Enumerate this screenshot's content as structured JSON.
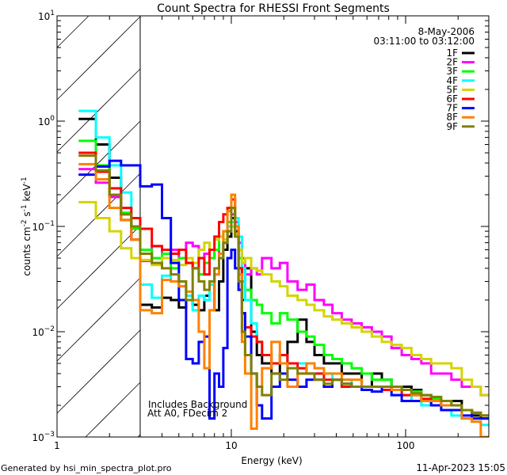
{
  "chart_data": {
    "type": "line",
    "title": "Count Spectra for RHESSI Front Segments",
    "xlabel": "Energy (keV)",
    "ylabel": {
      "base": "counts cm",
      "exp1": "-2",
      "mid": " s",
      "exp2": "-1",
      "tail": " keV",
      "exp3": "-1"
    },
    "xscale": "log",
    "yscale": "log",
    "xlim": [
      1,
      300
    ],
    "ylim": [
      0.001,
      10
    ],
    "x_tick_labels": [
      {
        "value": 1,
        "label": "1"
      },
      {
        "value": 10,
        "label": "10"
      },
      {
        "value": 100,
        "label": "100"
      }
    ],
    "y_tick_labels": [
      {
        "value": 10,
        "base": "10",
        "exp": "1"
      },
      {
        "value": 1,
        "base": "10",
        "exp": "0"
      },
      {
        "value": 0.1,
        "base": "10",
        "exp": "−1"
      },
      {
        "value": 0.01,
        "base": "10",
        "exp": "−2"
      },
      {
        "value": 0.001,
        "base": "10",
        "exp": "−3"
      }
    ],
    "excluded_region_keV": [
      1,
      3
    ],
    "date": "8-May-2006",
    "time_range": "03:11:00 to 03:12:00",
    "annotations": [
      "Includes Background",
      "Att A0, FDecim 2"
    ],
    "legend_position": "top-right",
    "bin_edges_keV": [
      1.33,
      1.67,
      2,
      2.33,
      2.67,
      3,
      3.5,
      4,
      4.5,
      5,
      5.5,
      6,
      6.5,
      7,
      7.5,
      8,
      8.5,
      9,
      9.5,
      10,
      10.5,
      11,
      11.5,
      12,
      13,
      14,
      15,
      17,
      19,
      21,
      24,
      27,
      30,
      34,
      38,
      43,
      49,
      56,
      64,
      73,
      83,
      95,
      108,
      123,
      140,
      160,
      183,
      210,
      240,
      270,
      300
    ],
    "series": [
      {
        "name": "1F",
        "color": "#000000",
        "values": [
          1.05,
          0.6,
          0.29,
          0.115,
          0.075,
          0.018,
          0.017,
          0.021,
          0.02,
          0.017,
          0.02,
          0.018,
          0.016,
          0.022,
          0.03,
          0.016,
          0.03,
          0.06,
          0.08,
          0.12,
          0.09,
          0.04,
          0.02,
          0.04,
          0.01,
          0.006,
          0.005,
          0.004,
          0.005,
          0.008,
          0.013,
          0.008,
          0.006,
          0.005,
          0.005,
          0.004,
          0.004,
          0.003,
          0.004,
          0.0035,
          0.003,
          0.003,
          0.0028,
          0.0025,
          0.002,
          0.0022,
          0.0022,
          0.0018,
          0.0016,
          0.0015
        ]
      },
      {
        "name": "2F",
        "color": "#ff00ff",
        "values": [
          0.35,
          0.26,
          0.19,
          0.13,
          0.075,
          0.047,
          0.065,
          0.05,
          0.06,
          0.05,
          0.07,
          0.065,
          0.05,
          0.055,
          0.05,
          0.06,
          0.055,
          0.07,
          0.09,
          0.13,
          0.11,
          0.07,
          0.05,
          0.035,
          0.04,
          0.035,
          0.05,
          0.04,
          0.045,
          0.03,
          0.025,
          0.028,
          0.02,
          0.018,
          0.015,
          0.013,
          0.012,
          0.011,
          0.01,
          0.009,
          0.007,
          0.006,
          0.0055,
          0.005,
          0.004,
          0.004,
          0.0035,
          0.003,
          0.003,
          0.0025
        ]
      },
      {
        "name": "3F",
        "color": "#00ff00",
        "values": [
          0.65,
          0.38,
          0.2,
          0.135,
          0.095,
          0.06,
          0.05,
          0.055,
          0.04,
          0.05,
          0.045,
          0.04,
          0.035,
          0.045,
          0.05,
          0.06,
          0.08,
          0.09,
          0.11,
          0.15,
          0.1,
          0.05,
          0.03,
          0.025,
          0.02,
          0.018,
          0.015,
          0.012,
          0.015,
          0.013,
          0.01,
          0.009,
          0.0075,
          0.006,
          0.0055,
          0.005,
          0.0045,
          0.004,
          0.0035,
          0.0035,
          0.003,
          0.0028,
          0.0027,
          0.0025,
          0.0023,
          0.0022,
          0.002,
          0.0018,
          0.0017,
          0.0016
        ]
      },
      {
        "name": "4F",
        "color": "#00ffff",
        "values": [
          1.25,
          0.7,
          0.38,
          0.21,
          0.1,
          0.028,
          0.021,
          0.034,
          0.03,
          0.03,
          0.022,
          0.016,
          0.022,
          0.02,
          0.028,
          0.035,
          0.05,
          0.07,
          0.1,
          0.11,
          0.12,
          0.08,
          0.04,
          0.02,
          0.012,
          0.008,
          0.006,
          0.005,
          0.006,
          0.005,
          0.005,
          0.004,
          0.004,
          0.004,
          0.0035,
          0.0035,
          0.003,
          0.003,
          0.003,
          0.0028,
          0.0025,
          0.0025,
          0.0022,
          0.002,
          0.002,
          0.0018,
          0.0016,
          0.0015,
          0.0014,
          0.0013
        ]
      },
      {
        "name": "5F",
        "color": "#d4d400",
        "values": [
          0.17,
          0.12,
          0.09,
          0.062,
          0.05,
          0.048,
          0.043,
          0.05,
          0.048,
          0.043,
          0.05,
          0.045,
          0.06,
          0.07,
          0.06,
          0.075,
          0.08,
          0.075,
          0.09,
          0.1,
          0.085,
          0.06,
          0.045,
          0.05,
          0.04,
          0.038,
          0.035,
          0.03,
          0.027,
          0.022,
          0.02,
          0.018,
          0.016,
          0.014,
          0.013,
          0.012,
          0.011,
          0.01,
          0.009,
          0.008,
          0.0075,
          0.007,
          0.006,
          0.0055,
          0.005,
          0.005,
          0.0045,
          0.0035,
          0.003,
          0.0025
        ]
      },
      {
        "name": "6F",
        "color": "#ff0000",
        "values": [
          0.5,
          0.33,
          0.23,
          0.15,
          0.12,
          0.095,
          0.065,
          0.06,
          0.055,
          0.06,
          0.045,
          0.04,
          0.05,
          0.035,
          0.06,
          0.08,
          0.11,
          0.13,
          0.15,
          0.18,
          0.1,
          0.04,
          0.015,
          0.011,
          0.009,
          0.008,
          0.006,
          0.005,
          0.006,
          0.005,
          0.0045,
          0.004,
          0.004,
          0.0035,
          0.0035,
          0.003,
          0.003,
          0.003,
          0.003,
          0.0028,
          0.0028,
          0.0025,
          0.0025,
          0.0023,
          0.0022,
          0.002,
          0.002,
          0.0018,
          0.0017,
          0.0016
        ]
      },
      {
        "name": "7F",
        "color": "#0000ff",
        "values": [
          0.31,
          0.37,
          0.42,
          0.38,
          0.38,
          0.24,
          0.25,
          0.12,
          0.045,
          0.02,
          0.0055,
          0.005,
          0.008,
          0.009,
          0.0015,
          0.004,
          0.003,
          0.007,
          0.05,
          0.06,
          0.04,
          0.025,
          0.015,
          0.009,
          0.004,
          0.002,
          0.0015,
          0.003,
          0.004,
          0.0035,
          0.003,
          0.0035,
          0.0035,
          0.003,
          0.0035,
          0.0032,
          0.003,
          0.0028,
          0.0027,
          0.003,
          0.0025,
          0.0022,
          0.0022,
          0.0022,
          0.002,
          0.0018,
          0.0018,
          0.0016,
          0.0015,
          0.0015
        ]
      },
      {
        "name": "8F",
        "color": "#ff8000",
        "values": [
          0.39,
          0.28,
          0.15,
          0.115,
          0.075,
          0.016,
          0.015,
          0.031,
          0.03,
          0.027,
          0.024,
          0.02,
          0.01,
          0.0045,
          0.016,
          0.035,
          0.055,
          0.09,
          0.14,
          0.2,
          0.1,
          0.035,
          0.008,
          0.004,
          0.0012,
          0.003,
          0.0045,
          0.008,
          0.005,
          0.003,
          0.004,
          0.005,
          0.0045,
          0.004,
          0.004,
          0.0035,
          0.0035,
          0.003,
          0.003,
          0.003,
          0.0028,
          0.0028,
          0.0025,
          0.0022,
          0.0022,
          0.002,
          0.002,
          0.0015,
          0.0014,
          0.001
        ]
      },
      {
        "name": "9F",
        "color": "#808000",
        "values": [
          0.47,
          0.34,
          0.2,
          0.13,
          0.1,
          0.055,
          0.045,
          0.04,
          0.035,
          0.03,
          0.02,
          0.04,
          0.03,
          0.025,
          0.03,
          0.04,
          0.05,
          0.07,
          0.09,
          0.15,
          0.08,
          0.03,
          0.01,
          0.006,
          0.004,
          0.003,
          0.0025,
          0.004,
          0.0035,
          0.0045,
          0.004,
          0.004,
          0.0035,
          0.0032,
          0.0035,
          0.0032,
          0.003,
          0.003,
          0.003,
          0.003,
          0.003,
          0.0028,
          0.0026,
          0.0025,
          0.0024,
          0.0022,
          0.002,
          0.0018,
          0.0017,
          0.0016
        ]
      }
    ]
  },
  "footer": {
    "generated_by": "Generated by hsi_min_spectra_plot.pro",
    "timestamp": "11-Apr-2023 15:05"
  }
}
